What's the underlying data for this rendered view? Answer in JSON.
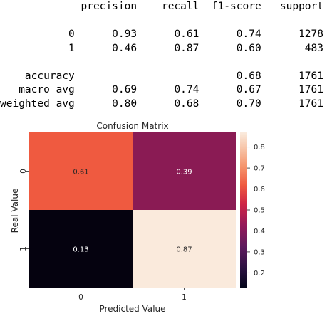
{
  "classification_report": {
    "columns": [
      "precision",
      "recall",
      "f1-score",
      "support"
    ],
    "rows": [
      {
        "label": "0",
        "precision": "0.93",
        "recall": "0.61",
        "f1": "0.74",
        "support": "1278"
      },
      {
        "label": "1",
        "precision": "0.46",
        "recall": "0.87",
        "f1": "0.60",
        "support": "483"
      },
      {
        "label": "accuracy",
        "precision": "",
        "recall": "",
        "f1": "0.68",
        "support": "1761"
      },
      {
        "label": "macro avg",
        "precision": "0.69",
        "recall": "0.74",
        "f1": "0.67",
        "support": "1761"
      },
      {
        "label": "weighted avg",
        "precision": "0.80",
        "recall": "0.68",
        "f1": "0.70",
        "support": "1761"
      }
    ]
  },
  "chart_data": {
    "type": "heatmap",
    "title": "Confusion Matrix",
    "xlabel": "Predicted Value",
    "ylabel": "Real Value",
    "x_categories": [
      "0",
      "1"
    ],
    "y_categories": [
      "0",
      "1"
    ],
    "values": [
      [
        0.61,
        0.39
      ],
      [
        0.13,
        0.87
      ]
    ],
    "annotations": [
      [
        "0.61",
        "0.39"
      ],
      [
        "0.13",
        "0.87"
      ]
    ],
    "colorbar": {
      "ticks": [
        "0.2",
        "0.3",
        "0.4",
        "0.5",
        "0.6",
        "0.7",
        "0.8"
      ],
      "range": [
        0.13,
        0.87
      ]
    },
    "colormap": "rocket",
    "colors": {
      "cell_00": "#ef5a40",
      "cell_01": "#8a1b54",
      "cell_10": "#05020f",
      "cell_11": "#faeadc"
    }
  }
}
